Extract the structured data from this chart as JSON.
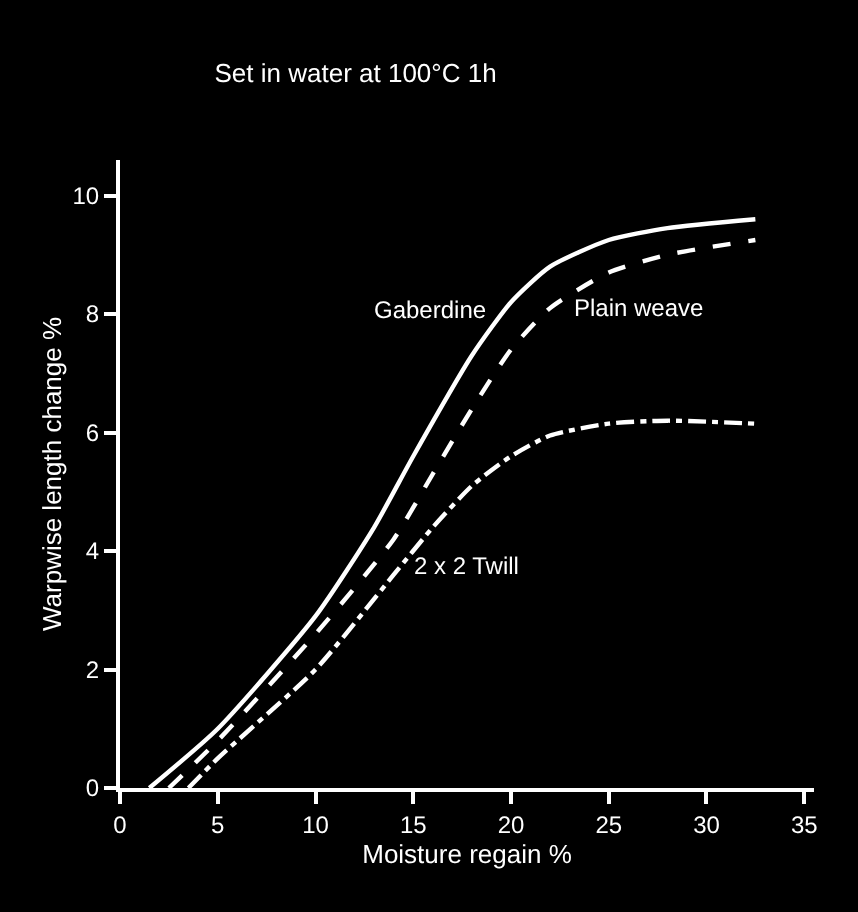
{
  "chart_data": {
    "type": "line",
    "title": "Set in water at 100°C 1h",
    "xlabel": "Moisture regain %",
    "ylabel": "Warpwise length change %",
    "xlim": [
      0,
      35.5
    ],
    "ylim": [
      0,
      10.6
    ],
    "xticks": [
      0,
      5,
      10,
      15,
      20,
      25,
      30,
      35
    ],
    "yticks": [
      0,
      2,
      4,
      6,
      8,
      10
    ],
    "grid": false,
    "legend": false,
    "marker": "none",
    "series": [
      {
        "name": "Gaberdine",
        "color": "#ffffff",
        "line_style": "solid",
        "x": [
          1.5,
          5,
          10,
          13,
          15,
          18,
          20,
          22,
          25,
          28,
          32.5
        ],
        "values": [
          0,
          1,
          2.9,
          4.4,
          5.6,
          7.3,
          8.2,
          8.8,
          9.25,
          9.45,
          9.6
        ]
      },
      {
        "name": "Plain weave",
        "color": "#ffffff",
        "line_style": "dashed",
        "x": [
          2.5,
          5,
          10,
          14,
          16,
          18,
          20,
          22,
          25,
          28,
          32.5
        ],
        "values": [
          0,
          0.8,
          2.6,
          4.2,
          5.3,
          6.4,
          7.4,
          8.1,
          8.7,
          9.0,
          9.25
        ]
      },
      {
        "name": "2 x 2 Twill",
        "color": "#ffffff",
        "line_style": "dashdot",
        "x": [
          3.5,
          5,
          10,
          14,
          16,
          18,
          20,
          22,
          25,
          28,
          32.5
        ],
        "values": [
          0,
          0.5,
          2.0,
          3.6,
          4.4,
          5.1,
          5.6,
          5.95,
          6.15,
          6.2,
          6.15
        ]
      }
    ]
  }
}
